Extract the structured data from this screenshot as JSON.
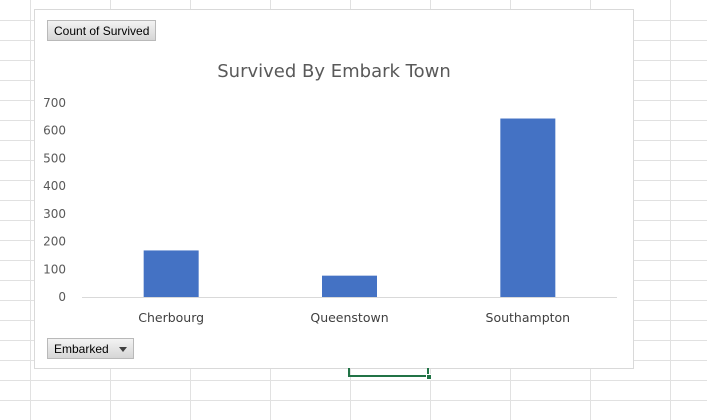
{
  "field_buttons": {
    "values_label": "Count  of Survived",
    "axis_label": "Embarked"
  },
  "colors": {
    "bar": "#4472c4",
    "axis": "#d9d9d9",
    "text": "#595959",
    "selection": "#217346"
  },
  "chart_data": {
    "type": "bar",
    "title": "Survived By Embark Town",
    "categories": [
      "Cherbourg",
      "Queenstown",
      "Southampton"
    ],
    "values": [
      168,
      77,
      644
    ],
    "ylim": [
      0,
      700
    ],
    "yticks": [
      0,
      100,
      200,
      300,
      400,
      500,
      600,
      700
    ],
    "xlabel": "",
    "ylabel": "",
    "grid": false,
    "legend": "none"
  }
}
